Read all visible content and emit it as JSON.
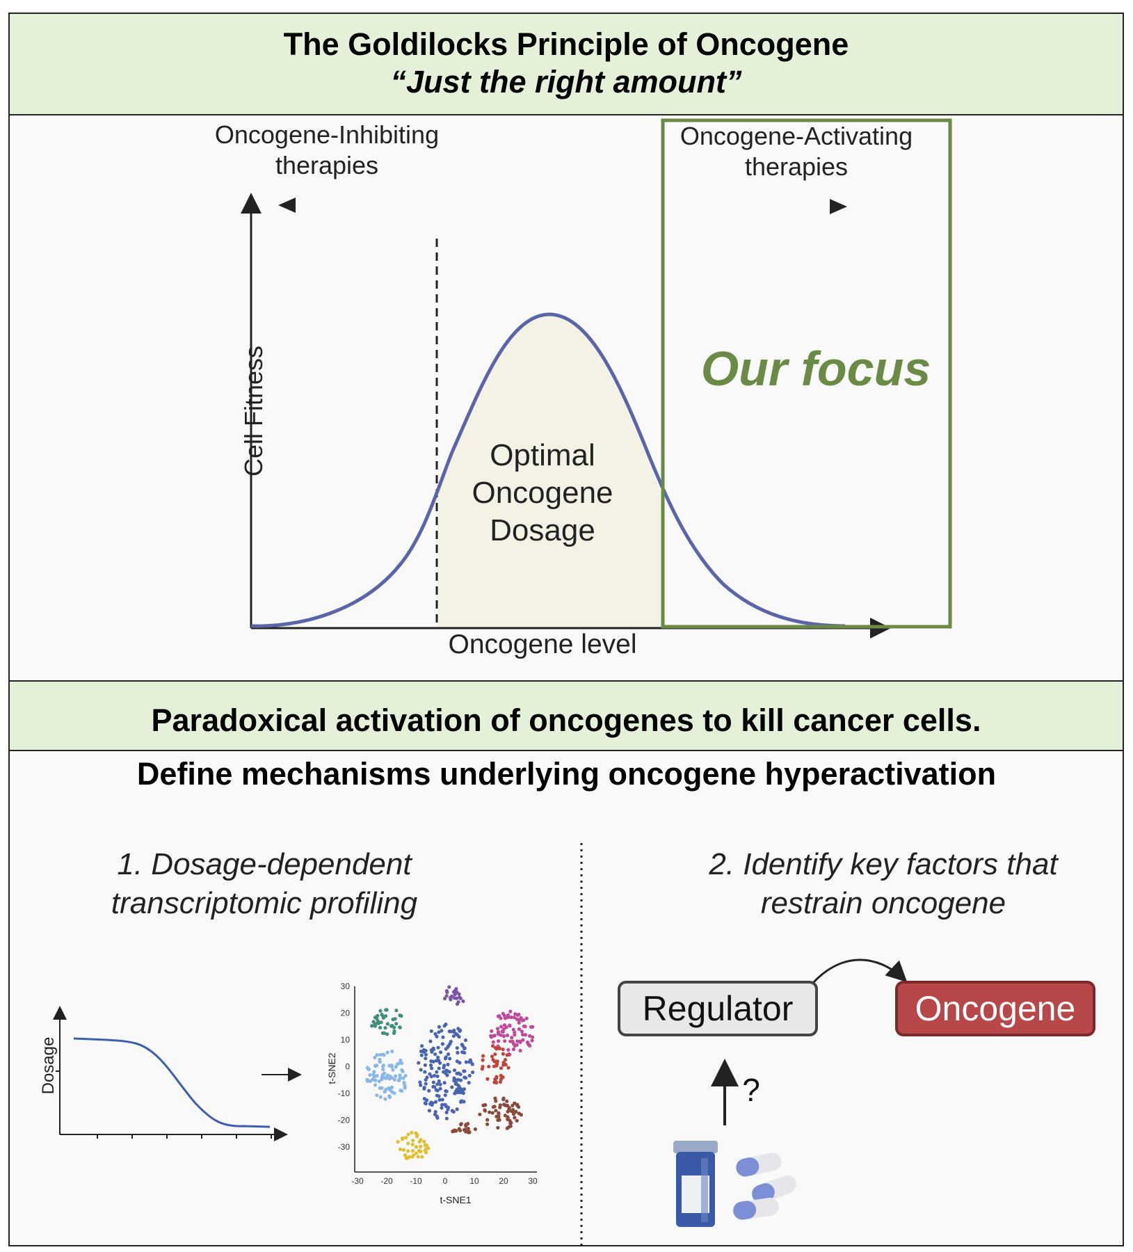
{
  "header": {
    "title": "The Goldilocks Principle of Oncogene",
    "subtitle": "“Just the right amount”"
  },
  "fitness_curve": {
    "inhibiting_label": "Oncogene-Inhibiting therapies",
    "activating_label": "Oncogene-Activating therapies",
    "focus_label": "Our focus",
    "optimal_label": "Optimal Oncogene Dosage",
    "xlabel": "Oncogene level",
    "ylabel": "Cell Fitness",
    "curve_color": "#5a64a8",
    "focus_color": "#6b8a45"
  },
  "section2": {
    "title": "Paradoxical activation of oncogenes to kill cancer cells.",
    "mechanisms_title": "Define mechanisms underlying oncogene hyperactivation"
  },
  "step1": {
    "label": "1. Dosage-dependent transcriptomic profiling",
    "dosage_axis": "Dosage",
    "tsne_x_label": "t-SNE1",
    "tsne_y_label": "t-SNE2",
    "tsne_x_ticks": [
      "-30",
      "-20",
      "-10",
      "0",
      "10",
      "20",
      "30"
    ],
    "tsne_y_ticks": [
      "30",
      "20",
      "10",
      "0",
      "-10",
      "-20",
      "-30"
    ]
  },
  "step2": {
    "label": "2. Identify key factors that restrain oncogene",
    "regulator": "Regulator",
    "oncogene": "Oncogene",
    "question": "?"
  }
}
